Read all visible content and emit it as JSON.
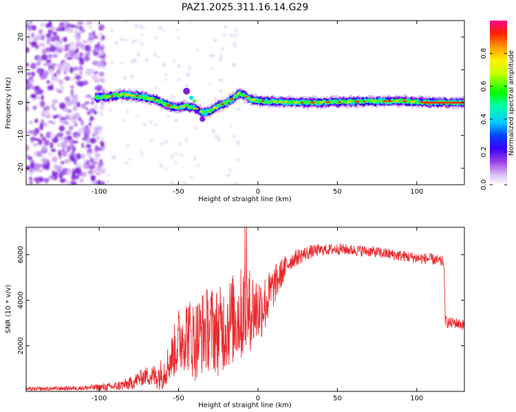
{
  "title": "PAZ1.2025.311.16.14.G29",
  "chart_data": [
    {
      "type": "heatmap",
      "xlabel": "Height of straight line (km)",
      "ylabel": "Frequency (Hz)",
      "xlim": [
        -146,
        130
      ],
      "ylim": [
        -25,
        25
      ],
      "x_ticks": [
        -100,
        -50,
        0,
        50,
        100
      ],
      "y_ticks": [
        -20,
        -10,
        0,
        10,
        20
      ],
      "colorbar": {
        "label": "Normalized spectral amplitude",
        "range": [
          0,
          1
        ],
        "ticks": [
          0.0,
          0.2,
          0.4,
          0.6,
          0.8
        ],
        "colors": [
          "#ffffff",
          "#c9a8f0",
          "#7b1fe0",
          "#0000ff",
          "#00e5ff",
          "#00ff00",
          "#ffff00",
          "#ff8800",
          "#ff0000",
          "#ff00aa"
        ]
      },
      "ridge": {
        "x": [
          -102,
          -95,
          -85,
          -75,
          -65,
          -58,
          -52,
          -45,
          -40,
          -35,
          -30,
          -25,
          -20,
          -15,
          -12,
          -8,
          -5,
          0,
          10,
          30,
          60,
          90,
          110,
          130
        ],
        "y": [
          1.5,
          1.8,
          2.5,
          2.0,
          1.0,
          -0.5,
          -1.5,
          -1.0,
          -1.5,
          -3.0,
          -2.5,
          -1.0,
          0,
          1.5,
          3.0,
          2.0,
          1.0,
          0.5,
          0.3,
          0,
          0.3,
          0.5,
          0,
          0
        ]
      },
      "noise_region_km": [
        -146,
        -100
      ],
      "grid": false
    },
    {
      "type": "line",
      "xlabel": "Height of straight line (km)",
      "ylabel": "SNR (10 * v/v)",
      "xlim": [
        -146,
        130
      ],
      "ylim": [
        0,
        7200
      ],
      "x_ticks": [
        -100,
        -50,
        0,
        50,
        100
      ],
      "y_ticks": [
        2000,
        4000,
        6000
      ],
      "color": "#e8282a",
      "grid": false,
      "series": [
        {
          "x": [
            -146,
            -130,
            -110,
            -100,
            -92,
            -85,
            -80,
            -75,
            -70,
            -65,
            -60,
            -55,
            -50,
            -45,
            -40,
            -35,
            -30,
            -25,
            -20,
            -15,
            -10,
            -5,
            0,
            5,
            10,
            15,
            20,
            25,
            30,
            35,
            40,
            50,
            60,
            70,
            80,
            90,
            100,
            110,
            115,
            117,
            118,
            120,
            125,
            130
          ],
          "y": [
            100,
            120,
            150,
            180,
            200,
            280,
            350,
            550,
            700,
            650,
            800,
            1400,
            2200,
            2600,
            2200,
            2600,
            2800,
            2600,
            2900,
            3200,
            3400,
            3600,
            3600,
            3900,
            4600,
            5200,
            5700,
            5900,
            6050,
            6150,
            6200,
            6250,
            6200,
            6150,
            6050,
            5950,
            5850,
            5800,
            5700,
            5700,
            3100,
            3000,
            3000,
            2900
          ]
        }
      ],
      "noise_amplitude": [
        [
          -146,
          80
        ],
        [
          -110,
          100
        ],
        [
          -90,
          200
        ],
        [
          -70,
          400
        ],
        [
          -55,
          900
        ],
        [
          -50,
          1500
        ],
        [
          -40,
          1800
        ],
        [
          -30,
          1900
        ],
        [
          -20,
          2000
        ],
        [
          -10,
          2100
        ],
        [
          0,
          1600
        ],
        [
          10,
          900
        ],
        [
          20,
          400
        ],
        [
          40,
          250
        ],
        [
          130,
          250
        ]
      ]
    }
  ]
}
